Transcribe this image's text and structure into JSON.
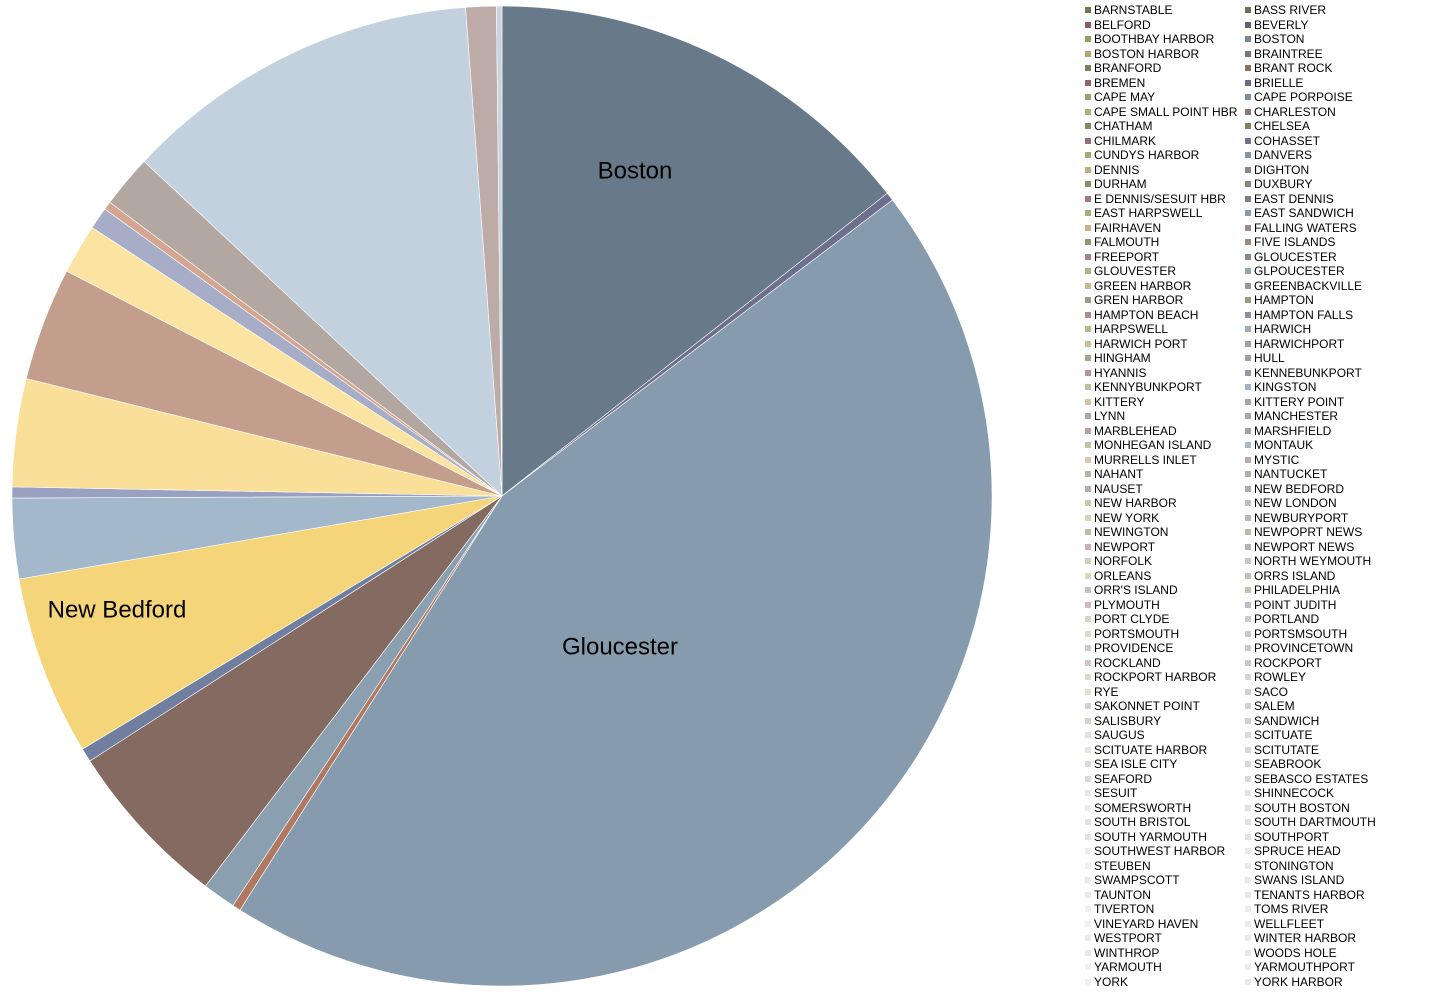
{
  "chart_data": {
    "type": "pie",
    "title": "",
    "legend_position": "right",
    "slices": [
      {
        "name": "BOSTON",
        "value": 15.8,
        "color": "#687a89",
        "label": "Boston"
      },
      {
        "name": "BOSTON HARBOR",
        "value": 0.3,
        "color": "#6e6f8e"
      },
      {
        "name": "GLOUCESTER",
        "value": 48.6,
        "color": "#879bae",
        "label": "Gloucester"
      },
      {
        "name": "GREEN HARBOR",
        "value": 0.3,
        "color": "#b07860"
      },
      {
        "name": "HAMPTON",
        "value": 1.2,
        "color": "#8aa0b0"
      },
      {
        "name": "MANCHESTER",
        "value": 6.1,
        "color": "#846a60"
      },
      {
        "name": "NAHANT",
        "value": 0.5,
        "color": "#707ea0"
      },
      {
        "name": "NEW BEDFORD",
        "value": 6.5,
        "color": "#f5d57a",
        "label": "New Bedford"
      },
      {
        "name": "NORTH WEYMOUTH",
        "value": 2.9,
        "color": "#a3b8cb"
      },
      {
        "name": "PLYMOUTH",
        "value": 0.4,
        "color": "#9aa0c0"
      },
      {
        "name": "PORTLAND",
        "value": 3.9,
        "color": "#f9df97"
      },
      {
        "name": "PORTSMOUTH",
        "value": 4.1,
        "color": "#c39e8c"
      },
      {
        "name": "ROCKLAND",
        "value": 1.8,
        "color": "#fbe4a2"
      },
      {
        "name": "RYE",
        "value": 0.8,
        "color": "#a8adc7"
      },
      {
        "name": "ROCKPORT HARBOR",
        "value": 0.3,
        "color": "#d4a590"
      },
      {
        "name": "SANDWICH",
        "value": 1.9,
        "color": "#b3a7a2"
      },
      {
        "name": "SCITUATE",
        "value": 13.0,
        "color": "#c3d1de"
      },
      {
        "name": "SEABROOK",
        "value": 1.1,
        "color": "#bcaba6"
      },
      {
        "name": "STONINGTON",
        "value": 0.2,
        "color": "#c9d4de"
      }
    ],
    "legend": [
      "BARNSTABLE",
      "BASS RIVER",
      "BELFORD",
      "BEVERLY",
      "BOOTHBAY HARBOR",
      "BOSTON",
      "BOSTON HARBOR",
      "BRAINTREE",
      "BRANFORD",
      "BRANT ROCK",
      "BREMEN",
      "BRIELLE",
      "CAPE MAY",
      "CAPE PORPOISE",
      "CAPE SMALL POINT HBR",
      "CHARLESTON",
      "CHATHAM",
      "CHELSEA",
      "CHILMARK",
      "COHASSET",
      "CUNDYS HARBOR",
      "DANVERS",
      "DENNIS",
      "DIGHTON",
      "DURHAM",
      "DUXBURY",
      "E DENNIS/SESUIT HBR",
      "EAST DENNIS",
      "EAST HARPSWELL",
      "EAST SANDWICH",
      "FAIRHAVEN",
      "FALLING WATERS",
      "FALMOUTH",
      "FIVE ISLANDS",
      "FREEPORT",
      "GLOUCESTER",
      "GLOUVESTER",
      "GLPOUCESTER",
      "GREEN HARBOR",
      "GREENBACKVILLE",
      "GREN HARBOR",
      "HAMPTON",
      "HAMPTON BEACH",
      "HAMPTON FALLS",
      "HARPSWELL",
      "HARWICH",
      "HARWICH PORT",
      "HARWICHPORT",
      "HINGHAM",
      "HULL",
      "HYANNIS",
      "KENNEBUNKPORT",
      "KENNYBUNKPORT",
      "KINGSTON",
      "KITTERY",
      "KITTERY POINT",
      "LYNN",
      "MANCHESTER",
      "MARBLEHEAD",
      "MARSHFIELD",
      "MONHEGAN ISLAND",
      "MONTAUK",
      "MURRELLS INLET",
      "MYSTIC",
      "NAHANT",
      "NANTUCKET",
      "NAUSET",
      "NEW BEDFORD",
      "NEW HARBOR",
      "NEW LONDON",
      "NEW YORK",
      "NEWBURYPORT",
      "NEWINGTON",
      "NEWPOPRT NEWS",
      "NEWPORT",
      "NEWPORT NEWS",
      "NORFOLK",
      "NORTH WEYMOUTH",
      "ORLEANS",
      "ORRS ISLAND",
      "ORR'S ISLAND",
      "PHILADELPHIA",
      "PLYMOUTH",
      "POINT JUDITH",
      "PORT CLYDE",
      "PORTLAND",
      "PORTSMOUTH",
      "PORTSMSOUTH",
      "PROVIDENCE",
      "PROVINCETOWN",
      "ROCKLAND",
      "ROCKPORT",
      "ROCKPORT HARBOR",
      "ROWLEY",
      "RYE",
      "SACO",
      "SAKONNET POINT",
      "SALEM",
      "SALISBURY",
      "SANDWICH",
      "SAUGUS",
      "SCITUATE",
      "SCITUATE HARBOR",
      "SCITUTATE",
      "SEA ISLE CITY",
      "SEABROOK",
      "SEAFORD",
      "SEBASCO ESTATES",
      "SESUIT",
      "SHINNECOCK",
      "SOMERSWORTH",
      "SOUTH BOSTON",
      "SOUTH BRISTOL",
      "SOUTH DARTMOUTH",
      "SOUTH YARMOUTH",
      "SOUTHPORT",
      "SOUTHWEST HARBOR",
      "SPRUCE HEAD",
      "STEUBEN",
      "STONINGTON",
      "SWAMPSCOTT",
      "SWANS ISLAND",
      "TAUNTON",
      "TENANTS HARBOR",
      "TIVERTON",
      "TOMS RIVER",
      "VINEYARD HAVEN",
      "WELLFLEET",
      "WESTPORT",
      "WINTER HARBOR",
      "WINTHROP",
      "WOODS HOLE",
      "YARMOUTH",
      "YARMOUTHPORT",
      "YORK",
      "YORK HARBOR"
    ],
    "legend_colors": [
      "#6b7a4e",
      "#7a6a50",
      "#8a5a58",
      "#5c5e78",
      "#86a05e",
      "#6d8597",
      "#b2a06a",
      "#7e6a68"
    ]
  }
}
